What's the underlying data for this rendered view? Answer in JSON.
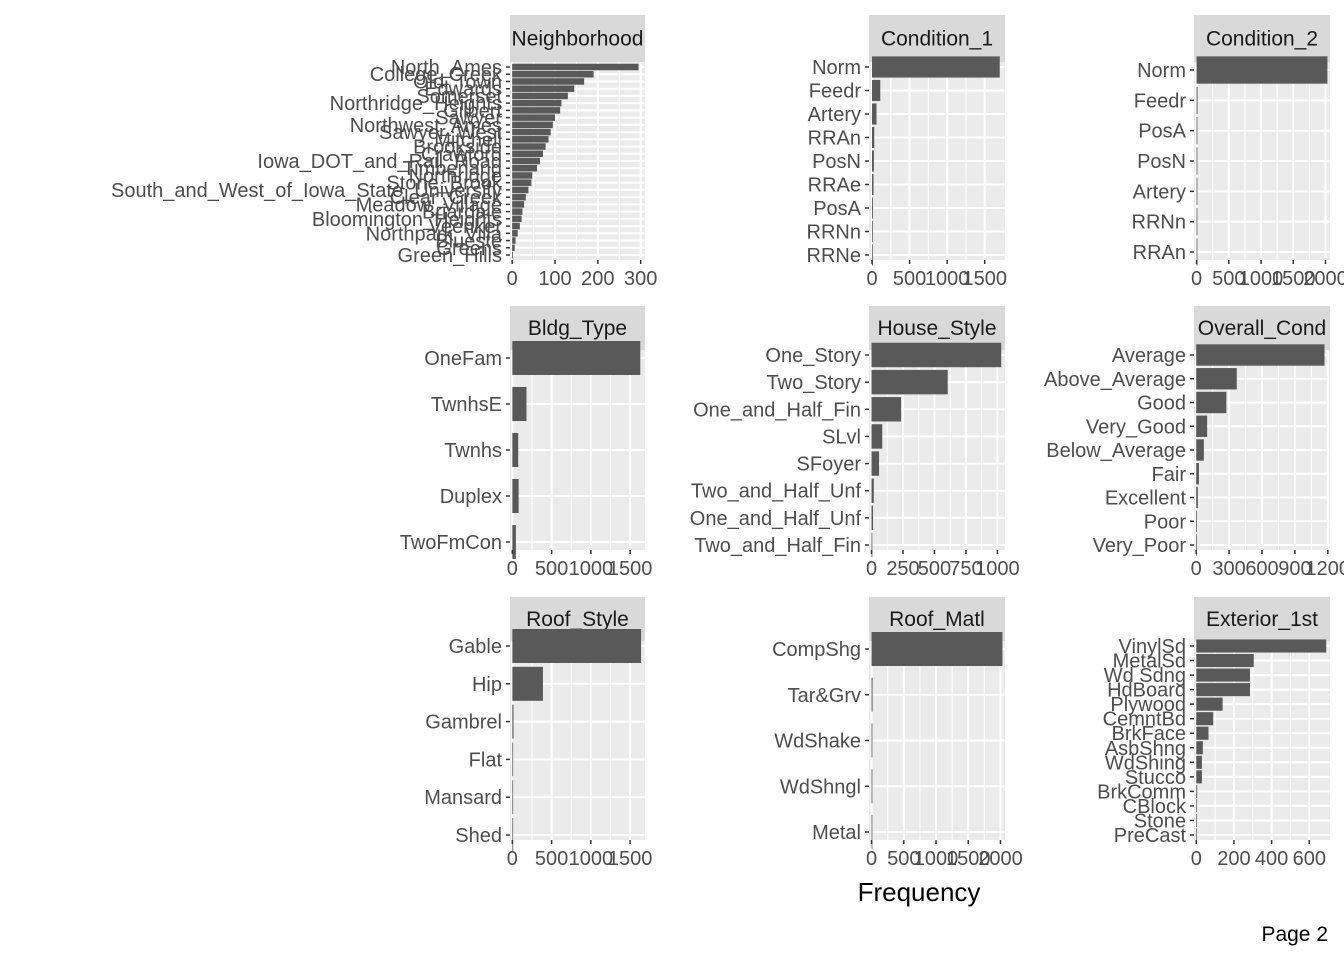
{
  "x_axis_title": "Frequency",
  "page_label": "Page 2",
  "colors": {
    "bar": "#595959",
    "panel": "#ebebeb",
    "strip": "#d9d9d9",
    "grid": "#ffffff"
  },
  "chart_data": [
    {
      "type": "bar",
      "orientation": "horizontal",
      "title": "Neighborhood",
      "categories": [
        "North_Ames",
        "College_Creek",
        "Old_Town",
        "Edwards",
        "Somerset",
        "Northridge_Heights",
        "Gilbert",
        "Sawyer",
        "Northwest_Ames",
        "Sawyer_West",
        "Mitchell",
        "Brookside",
        "Crawford",
        "Iowa_DOT_and_Rail_Road",
        "Timberland",
        "Northridge",
        "Stone_Brook",
        "South_and_West_of_Iowa_State_University",
        "Clear_Creek",
        "Meadow_Village",
        "Briardale",
        "Bloomington_Heights",
        "Veenker",
        "Northpark_Villa",
        "Blueste",
        "Greens",
        "Green_Hills"
      ],
      "values": [
        295,
        190,
        168,
        145,
        130,
        115,
        112,
        100,
        95,
        90,
        85,
        78,
        72,
        65,
        58,
        47,
        45,
        38,
        32,
        28,
        24,
        22,
        18,
        13,
        8,
        6,
        2
      ],
      "xlim": [
        -5,
        310
      ],
      "xticks": [
        0,
        100,
        200,
        300
      ],
      "xtick_labels": [
        "0",
        "100",
        "200",
        "300"
      ]
    },
    {
      "type": "bar",
      "orientation": "horizontal",
      "title": "Condition_1",
      "categories": [
        "Norm",
        "Feedr",
        "Artery",
        "RRAn",
        "PosN",
        "RRAe",
        "PosA",
        "RRNn",
        "RRNe"
      ],
      "values": [
        1700,
        110,
        60,
        30,
        25,
        20,
        12,
        5,
        2
      ],
      "xlim": [
        -40,
        1770
      ],
      "xticks": [
        0,
        500,
        1000,
        1500
      ],
      "xtick_labels": [
        "0",
        "500",
        "1000",
        "1500"
      ]
    },
    {
      "type": "bar",
      "orientation": "horizontal",
      "title": "Condition_2",
      "categories": [
        "Norm",
        "Feedr",
        "PosA",
        "PosN",
        "Artery",
        "RRNn",
        "RRAn"
      ],
      "values": [
        2030,
        15,
        3,
        3,
        2,
        2,
        1
      ],
      "xlim": [
        -40,
        2070
      ],
      "xticks": [
        0,
        500,
        1000,
        1500,
        2000
      ],
      "xtick_labels": [
        "0",
        "500",
        "1000",
        "1500",
        "2000"
      ]
    },
    {
      "type": "bar",
      "orientation": "horizontal",
      "title": "Bldg_Type",
      "categories": [
        "OneFam",
        "TwnhsE",
        "Twnhs",
        "Duplex",
        "TwoFmCon"
      ],
      "values": [
        1630,
        180,
        75,
        80,
        45
      ],
      "xlim": [
        -30,
        1690
      ],
      "xticks": [
        0,
        500,
        1000,
        1500
      ],
      "xtick_labels": [
        "0",
        "500",
        "1000",
        "1500"
      ]
    },
    {
      "type": "bar",
      "orientation": "horizontal",
      "title": "House_Style",
      "categories": [
        "One_Story",
        "Two_Story",
        "One_and_Half_Fin",
        "SLvl",
        "SFoyer",
        "Two_and_Half_Unf",
        "One_and_Half_Unf",
        "Two_and_Half_Fin"
      ],
      "values": [
        1030,
        605,
        235,
        85,
        60,
        18,
        12,
        6
      ],
      "xlim": [
        -20,
        1060
      ],
      "xticks": [
        0,
        250,
        500,
        750,
        1000
      ],
      "xtick_labels": [
        "0",
        "250",
        "500",
        "750",
        "1000"
      ]
    },
    {
      "type": "bar",
      "orientation": "horizontal",
      "title": "Overall_Cond",
      "categories": [
        "Average",
        "Above_Average",
        "Good",
        "Very_Good",
        "Below_Average",
        "Fair",
        "Excellent",
        "Poor",
        "Very_Poor"
      ],
      "values": [
        1170,
        370,
        275,
        100,
        70,
        25,
        15,
        5,
        2
      ],
      "xlim": [
        -20,
        1220
      ],
      "xticks": [
        0,
        300,
        600,
        900,
        1200
      ],
      "xtick_labels": [
        "0",
        "300",
        "600",
        "900",
        "1200"
      ]
    },
    {
      "type": "bar",
      "orientation": "horizontal",
      "title": "Roof_Style",
      "categories": [
        "Gable",
        "Hip",
        "Gambrel",
        "Flat",
        "Mansard",
        "Shed"
      ],
      "values": [
        1640,
        390,
        15,
        10,
        8,
        3
      ],
      "xlim": [
        -30,
        1690
      ],
      "xticks": [
        0,
        500,
        1000,
        1500
      ],
      "xtick_labels": [
        "0",
        "500",
        "1000",
        "1500"
      ]
    },
    {
      "type": "bar",
      "orientation": "horizontal",
      "title": "Roof_Matl",
      "categories": [
        "CompShg",
        "Tar&Grv",
        "WdShake",
        "WdShngl",
        "Metal"
      ],
      "values": [
        2030,
        15,
        5,
        4,
        1
      ],
      "xlim": [
        -40,
        2070
      ],
      "xticks": [
        0,
        500,
        1000,
        1500,
        2000
      ],
      "xtick_labels": [
        "0",
        "500",
        "1000",
        "1500",
        "2000"
      ]
    },
    {
      "type": "bar",
      "orientation": "horizontal",
      "title": "Exterior_1st",
      "categories": [
        "VinylSd",
        "MetalSd",
        "Wd Sdng",
        "HdBoard",
        "Plywood",
        "CemntBd",
        "BrkFace",
        "AsbShng",
        "WdShing",
        "Stucco",
        "BrkComm",
        "CBlock",
        "Stone",
        "PreCast"
      ],
      "values": [
        690,
        305,
        285,
        285,
        140,
        90,
        65,
        35,
        30,
        30,
        5,
        2,
        2,
        1
      ],
      "xlim": [
        -12,
        710
      ],
      "xticks": [
        0,
        200,
        400,
        600
      ],
      "xtick_labels": [
        "0",
        "200",
        "400",
        "600"
      ]
    }
  ]
}
